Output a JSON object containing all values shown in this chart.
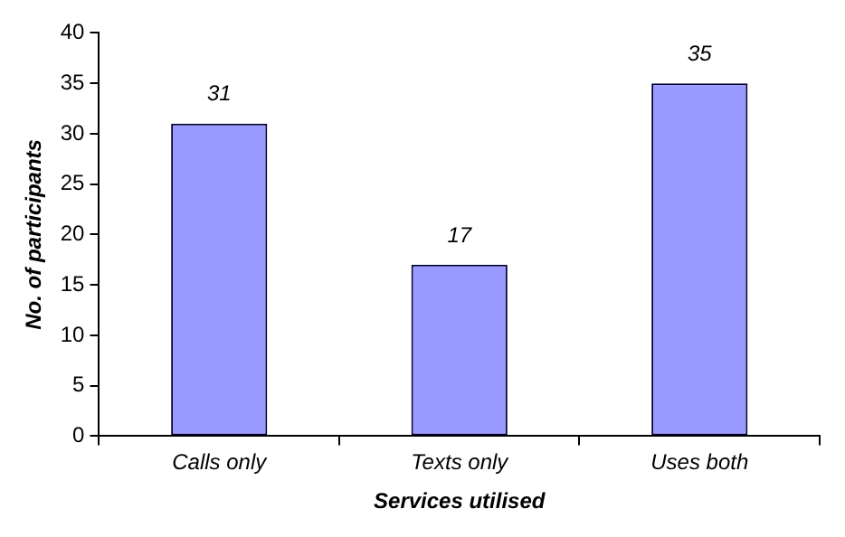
{
  "chart_data": {
    "type": "bar",
    "xlabel": "Services utilised",
    "ylabel": "No. of participants",
    "categories": [
      "Calls only",
      "Texts only",
      "Uses both"
    ],
    "values": [
      31,
      17,
      35
    ],
    "color": "#9999ff",
    "ylim": [
      0,
      40
    ],
    "yticks": [
      0,
      5,
      10,
      15,
      20,
      25,
      30,
      35,
      40
    ],
    "grid": false,
    "data_labels": true
  }
}
